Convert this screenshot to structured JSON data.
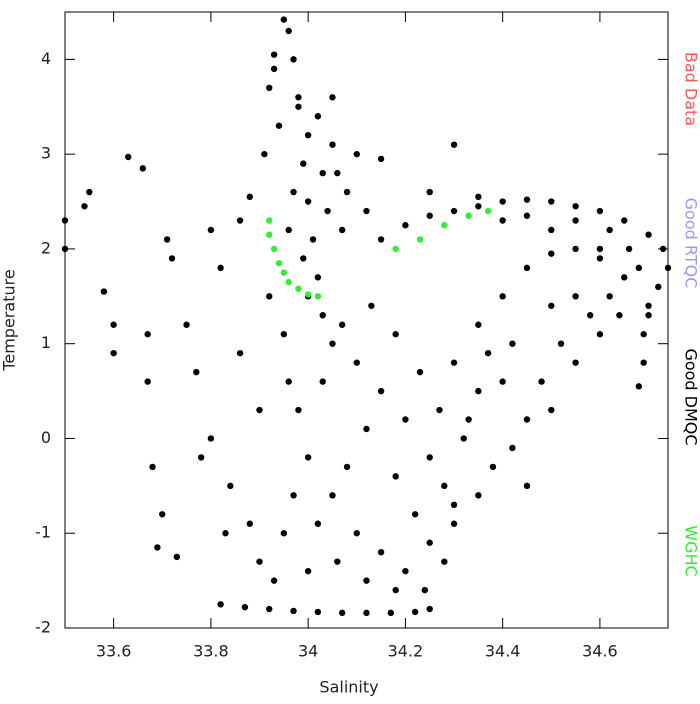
{
  "chart_data": {
    "type": "scatter",
    "xlabel": "Salinity",
    "ylabel": "Temperature",
    "xlim": [
      33.5,
      34.74
    ],
    "ylim": [
      -2,
      4.5
    ],
    "xticks": [
      33.6,
      33.8,
      34.0,
      34.2,
      34.4,
      34.6
    ],
    "yticks": [
      -2,
      -1,
      0,
      1,
      2,
      3,
      4
    ],
    "legend_position": "right",
    "series": [
      {
        "name": "Bad Data",
        "color": "#ff5555",
        "x": [],
        "values": []
      },
      {
        "name": "Good RTQC",
        "color": "#9999ff",
        "x": [],
        "values": []
      },
      {
        "name": "Good DMQC",
        "color": "#000000",
        "x": [
          33.95,
          33.96,
          33.93,
          33.97,
          33.92,
          33.98,
          33.94,
          34.0,
          33.91,
          33.99,
          34.02,
          34.05,
          34.03,
          33.97,
          34.0,
          33.96,
          34.01,
          34.04,
          33.99,
          34.02,
          34.0,
          34.03,
          34.06,
          34.08,
          34.1,
          34.12,
          34.07,
          33.98,
          33.93,
          34.05,
          34.15,
          34.2,
          34.25,
          34.3,
          34.35,
          34.4,
          34.45,
          34.5,
          34.55,
          34.6,
          34.65,
          34.7,
          34.73,
          34.74,
          34.72,
          34.7,
          34.69,
          34.69,
          34.68,
          34.7,
          34.25,
          34.35,
          34.45,
          34.55,
          34.62,
          34.66,
          34.68,
          34.6,
          34.5,
          34.4,
          34.3,
          34.35,
          34.4,
          34.45,
          34.5,
          34.55,
          34.6,
          34.65,
          34.62,
          34.58,
          34.52,
          34.48,
          34.45,
          34.42,
          34.38,
          34.55,
          34.5,
          34.42,
          34.35,
          34.32,
          34.05,
          34.1,
          34.15,
          34.2,
          34.25,
          34.28,
          34.3,
          34.22,
          34.18,
          34.12,
          34.08,
          34.05,
          34.02,
          34.1,
          34.15,
          34.2,
          34.25,
          34.3,
          34.35,
          34.0,
          33.98,
          34.03,
          34.07,
          34.13,
          34.18,
          34.23,
          34.27,
          34.33,
          34.37,
          34.4,
          33.95,
          33.9,
          33.93,
          34.0,
          34.06,
          34.12,
          34.18,
          34.24,
          34.28,
          33.97,
          33.82,
          33.87,
          33.92,
          33.97,
          34.02,
          34.07,
          34.12,
          34.17,
          34.22,
          34.25,
          33.5,
          33.5,
          33.55,
          33.54,
          33.58,
          33.6,
          33.6,
          33.63,
          33.66,
          33.67,
          33.67,
          33.68,
          33.69,
          33.7,
          33.71,
          33.72,
          33.73,
          33.75,
          33.77,
          33.8,
          33.8,
          33.82,
          33.84,
          33.86,
          33.86,
          33.88,
          33.9,
          33.88,
          33.83,
          33.78,
          34.3,
          34.15,
          33.92,
          33.95,
          33.96,
          34.45,
          34.5,
          34.55,
          34.6,
          34.64
        ],
        "values": [
          4.42,
          4.3,
          4.05,
          4.0,
          3.7,
          3.6,
          3.3,
          3.2,
          3.0,
          2.9,
          3.4,
          3.1,
          2.8,
          2.6,
          2.5,
          2.2,
          2.1,
          2.4,
          1.9,
          1.7,
          1.5,
          1.3,
          2.8,
          2.6,
          3.0,
          2.4,
          2.2,
          3.5,
          3.9,
          3.6,
          2.1,
          2.25,
          2.35,
          2.4,
          2.45,
          2.5,
          2.52,
          2.5,
          2.45,
          2.4,
          2.3,
          2.15,
          2.0,
          1.8,
          1.6,
          1.4,
          1.1,
          0.8,
          0.55,
          1.3,
          2.6,
          2.55,
          2.35,
          2.3,
          2.2,
          2.0,
          1.8,
          2.0,
          2.2,
          2.3,
          0.8,
          1.2,
          1.5,
          1.8,
          1.95,
          2.0,
          1.9,
          1.7,
          1.5,
          1.3,
          1.0,
          0.6,
          0.2,
          -0.1,
          -0.3,
          1.5,
          1.4,
          1.0,
          0.5,
          0.0,
          1.0,
          0.8,
          0.5,
          0.2,
          -0.2,
          -0.5,
          -0.7,
          -0.8,
          -0.4,
          0.1,
          -0.3,
          -0.6,
          -0.9,
          -1.0,
          -1.2,
          -1.4,
          -1.1,
          -0.9,
          -0.6,
          -0.2,
          0.3,
          0.6,
          1.2,
          1.4,
          1.1,
          0.7,
          0.3,
          0.2,
          0.9,
          0.6,
          -1.0,
          -1.3,
          -1.5,
          -1.4,
          -1.3,
          -1.5,
          -1.6,
          -1.6,
          -1.3,
          -0.6,
          -1.75,
          -1.78,
          -1.8,
          -1.82,
          -1.83,
          -1.84,
          -1.84,
          -1.84,
          -1.83,
          -1.8,
          2.3,
          2.0,
          2.6,
          2.45,
          1.55,
          1.2,
          0.9,
          2.97,
          2.85,
          1.1,
          0.6,
          -0.3,
          -1.15,
          -0.8,
          2.1,
          1.9,
          -1.25,
          1.2,
          0.7,
          2.2,
          0.0,
          1.8,
          -0.5,
          2.3,
          0.9,
          2.55,
          0.3,
          -0.9,
          -1.0,
          -0.2,
          3.1,
          2.95,
          1.5,
          1.1,
          0.6,
          -0.5,
          0.3,
          0.8,
          1.1,
          1.3
        ]
      },
      {
        "name": "WGHC",
        "color": "#33ee33",
        "x": [
          33.92,
          33.92,
          33.93,
          33.94,
          33.95,
          33.96,
          33.98,
          34.0,
          34.02,
          34.18,
          34.23,
          34.28,
          34.33,
          34.37
        ],
        "values": [
          2.3,
          2.15,
          2.0,
          1.85,
          1.75,
          1.65,
          1.58,
          1.52,
          1.5,
          2.0,
          2.1,
          2.25,
          2.35,
          2.4
        ]
      }
    ]
  }
}
